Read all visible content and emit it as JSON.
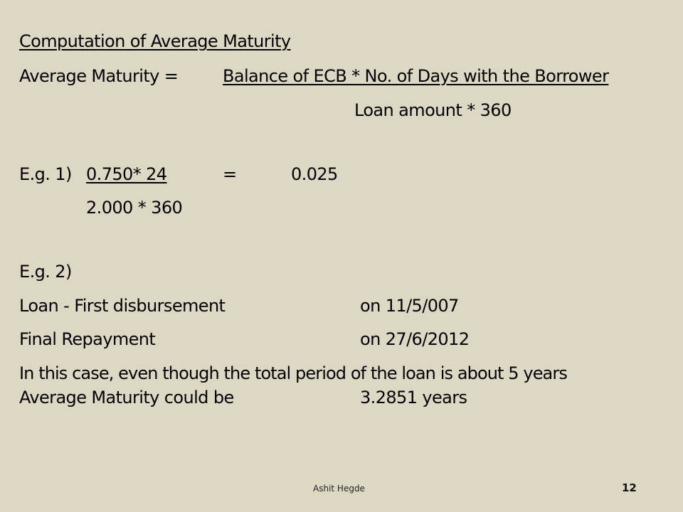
{
  "slide": {
    "title": "Computation of Average Maturity",
    "formula": {
      "lhs": "Average Maturity =",
      "numerator": "Balance of ECB * No. of Days with the Borrower",
      "denominator": "Loan amount * 360"
    },
    "example1": {
      "label": "E.g.  1)",
      "numerator": "0.750* 24",
      "equals": "=",
      "result": "0.025",
      "denominator": "2.000 * 360"
    },
    "example2": {
      "label": "E.g.  2)",
      "first_disbursement_label": "Loan - First disbursement",
      "first_disbursement_date": "on 11/5/007",
      "final_repayment_label": "Final Repayment",
      "final_repayment_date": "on 27/6/2012",
      "note": "In this case, even though the total period of the loan is about 5 years",
      "avg_label": "Average Maturity could be",
      "avg_value": "3.2851 years"
    },
    "footer": {
      "author": "Ashit Hegde",
      "page_number": "12"
    }
  }
}
